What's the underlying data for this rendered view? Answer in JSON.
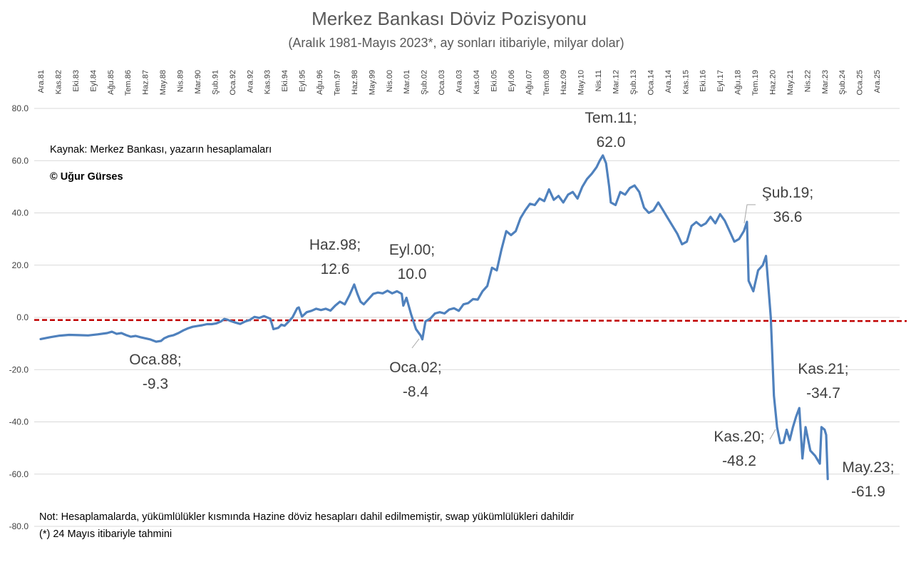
{
  "chart_data": {
    "type": "line",
    "title": "Merkez Bankası Döviz Pozisyonu",
    "subtitle": "(Aralık 1981-Mayıs 2023*, ay sonları itibariyle, milyar dolar)",
    "source": "Kaynak: Merkez Bankası, yazarın hesaplamaları",
    "copyright": "© Uğur Gürses",
    "note": "Not: Hesaplamalarda, yükümlülükler kısmında Hazine döviz hesapları dahil edilmemiştir, swap yükümlülükleri dahildir",
    "footnote": "(*) 24 Mayıs itibariyle  tahmini",
    "ylim": [
      -80,
      80
    ],
    "yticks": [
      "80.0",
      "60.0",
      "40.0",
      "20.0",
      "0.0",
      "-20.0",
      "-40.0",
      "-60.0",
      "-80.0"
    ],
    "xticks": [
      "Ara.81",
      "Kas.82",
      "Eki.83",
      "Eyl.84",
      "Ağu.85",
      "Tem.86",
      "Haz.87",
      "May.88",
      "Nis.89",
      "Mar.90",
      "Şub.91",
      "Oca.92",
      "Ara.92",
      "Kas.93",
      "Eki.94",
      "Eyl.95",
      "Ağu.96",
      "Tem.97",
      "Haz.98",
      "May.99",
      "Nis.00",
      "Mar.01",
      "Şub.02",
      "Oca.03",
      "Ara.03",
      "Kas.04",
      "Eki.05",
      "Eyl.06",
      "Ağu.07",
      "Tem.08",
      "Haz.09",
      "May.10",
      "Nis.11",
      "Mar.12",
      "Şub.13",
      "Oca.14",
      "Ara.14",
      "Kas.15",
      "Eki.16",
      "Eyl.17",
      "Ağu.18",
      "Tem.19",
      "Haz.20",
      "May.21",
      "Nis.22",
      "Mar.23",
      "Şub.24",
      "Oca.25",
      "Ara.25"
    ],
    "reference_line": {
      "y": -1,
      "color": "#c00000",
      "style": "dashed"
    },
    "series": [
      {
        "color": "#4f81bd",
        "points": [
          [
            "1981-12",
            -8.3
          ],
          [
            "1982-06",
            -7.6
          ],
          [
            "1982-12",
            -7.0
          ],
          [
            "1983-06",
            -6.7
          ],
          [
            "1983-12",
            -6.8
          ],
          [
            "1984-06",
            -6.9
          ],
          [
            "1984-12",
            -6.5
          ],
          [
            "1985-06",
            -6.0
          ],
          [
            "1985-09",
            -5.5
          ],
          [
            "1985-12",
            -6.3
          ],
          [
            "1986-03",
            -6.0
          ],
          [
            "1986-06",
            -6.8
          ],
          [
            "1986-09",
            -7.4
          ],
          [
            "1986-12",
            -7.1
          ],
          [
            "1987-03",
            -7.6
          ],
          [
            "1987-06",
            -8.0
          ],
          [
            "1987-09",
            -8.4
          ],
          [
            "1988-01",
            -9.3
          ],
          [
            "1988-04",
            -9.0
          ],
          [
            "1988-06",
            -8.0
          ],
          [
            "1988-09",
            -7.2
          ],
          [
            "1988-12",
            -6.8
          ],
          [
            "1989-03",
            -6.0
          ],
          [
            "1989-06",
            -5.0
          ],
          [
            "1989-09",
            -4.2
          ],
          [
            "1989-12",
            -3.6
          ],
          [
            "1990-03",
            -3.3
          ],
          [
            "1990-06",
            -3.0
          ],
          [
            "1990-09",
            -2.6
          ],
          [
            "1990-12",
            -2.6
          ],
          [
            "1991-03",
            -2.3
          ],
          [
            "1991-06",
            -1.5
          ],
          [
            "1991-08",
            -0.6
          ],
          [
            "1991-10",
            -0.9
          ],
          [
            "1991-12",
            -1.4
          ],
          [
            "1992-03",
            -2.0
          ],
          [
            "1992-06",
            -2.5
          ],
          [
            "1992-09",
            -1.6
          ],
          [
            "1992-12",
            -1.0
          ],
          [
            "1993-03",
            0.2
          ],
          [
            "1993-06",
            -0.2
          ],
          [
            "1993-09",
            0.5
          ],
          [
            "1993-11",
            0.0
          ],
          [
            "1994-01",
            -0.5
          ],
          [
            "1994-03",
            -4.5
          ],
          [
            "1994-06",
            -4.0
          ],
          [
            "1994-08",
            -2.8
          ],
          [
            "1994-10",
            -3.2
          ],
          [
            "1994-12",
            -2.0
          ],
          [
            "1995-03",
            0.0
          ],
          [
            "1995-06",
            3.5
          ],
          [
            "1995-07",
            3.8
          ],
          [
            "1995-09",
            0.3
          ],
          [
            "1995-12",
            2.0
          ],
          [
            "1996-03",
            2.5
          ],
          [
            "1996-06",
            3.3
          ],
          [
            "1996-09",
            2.8
          ],
          [
            "1996-12",
            3.3
          ],
          [
            "1997-03",
            2.6
          ],
          [
            "1997-06",
            4.5
          ],
          [
            "1997-09",
            6.0
          ],
          [
            "1997-12",
            5.0
          ],
          [
            "1998-03",
            8.5
          ],
          [
            "1998-06",
            12.6
          ],
          [
            "1998-08",
            9.0
          ],
          [
            "1998-10",
            6.0
          ],
          [
            "1998-12",
            5.0
          ],
          [
            "1999-03",
            7.0
          ],
          [
            "1999-06",
            9.0
          ],
          [
            "1999-09",
            9.5
          ],
          [
            "1999-12",
            9.2
          ],
          [
            "2000-03",
            10.2
          ],
          [
            "2000-06",
            9.2
          ],
          [
            "2000-09",
            10.0
          ],
          [
            "2000-12",
            9.0
          ],
          [
            "2001-01",
            4.5
          ],
          [
            "2001-03",
            7.5
          ],
          [
            "2001-06",
            1.0
          ],
          [
            "2001-09",
            -4.5
          ],
          [
            "2001-12",
            -7.0
          ],
          [
            "2002-01",
            -8.4
          ],
          [
            "2002-03",
            -1.5
          ],
          [
            "2002-06",
            -0.5
          ],
          [
            "2002-09",
            1.5
          ],
          [
            "2002-12",
            2.0
          ],
          [
            "2003-03",
            1.5
          ],
          [
            "2003-06",
            3.0
          ],
          [
            "2003-09",
            3.5
          ],
          [
            "2003-12",
            2.5
          ],
          [
            "2004-03",
            5.0
          ],
          [
            "2004-06",
            5.5
          ],
          [
            "2004-09",
            7.0
          ],
          [
            "2004-12",
            6.8
          ],
          [
            "2005-03",
            10.0
          ],
          [
            "2005-06",
            12.0
          ],
          [
            "2005-09",
            19.0
          ],
          [
            "2005-12",
            18.0
          ],
          [
            "2006-03",
            26.0
          ],
          [
            "2006-06",
            33.0
          ],
          [
            "2006-09",
            31.5
          ],
          [
            "2006-12",
            33.0
          ],
          [
            "2007-03",
            38.0
          ],
          [
            "2007-06",
            41.0
          ],
          [
            "2007-09",
            43.5
          ],
          [
            "2007-12",
            43.0
          ],
          [
            "2008-03",
            45.5
          ],
          [
            "2008-06",
            44.5
          ],
          [
            "2008-09",
            49.0
          ],
          [
            "2008-12",
            45.0
          ],
          [
            "2009-03",
            46.5
          ],
          [
            "2009-06",
            44.0
          ],
          [
            "2009-09",
            47.0
          ],
          [
            "2009-12",
            48.0
          ],
          [
            "2010-03",
            45.5
          ],
          [
            "2010-06",
            50.0
          ],
          [
            "2010-09",
            53.0
          ],
          [
            "2010-12",
            55.0
          ],
          [
            "2011-03",
            57.5
          ],
          [
            "2011-05",
            60.0
          ],
          [
            "2011-07",
            62.0
          ],
          [
            "2011-09",
            59.0
          ],
          [
            "2011-11",
            50.0
          ],
          [
            "2011-12",
            44.0
          ],
          [
            "2012-03",
            43.0
          ],
          [
            "2012-06",
            48.0
          ],
          [
            "2012-09",
            47.0
          ],
          [
            "2012-12",
            49.5
          ],
          [
            "2013-03",
            50.5
          ],
          [
            "2013-06",
            48.0
          ],
          [
            "2013-09",
            42.0
          ],
          [
            "2013-12",
            40.0
          ],
          [
            "2014-03",
            41.0
          ],
          [
            "2014-06",
            44.0
          ],
          [
            "2014-09",
            41.0
          ],
          [
            "2014-12",
            38.0
          ],
          [
            "2015-03",
            35.0
          ],
          [
            "2015-06",
            32.0
          ],
          [
            "2015-09",
            28.0
          ],
          [
            "2015-12",
            29.0
          ],
          [
            "2016-03",
            35.0
          ],
          [
            "2016-06",
            36.5
          ],
          [
            "2016-09",
            35.0
          ],
          [
            "2016-12",
            36.0
          ],
          [
            "2017-03",
            38.5
          ],
          [
            "2017-06",
            36.0
          ],
          [
            "2017-09",
            39.5
          ],
          [
            "2017-12",
            37.0
          ],
          [
            "2018-03",
            33.0
          ],
          [
            "2018-06",
            29.0
          ],
          [
            "2018-09",
            30.0
          ],
          [
            "2018-12",
            33.0
          ],
          [
            "2019-02",
            36.6
          ],
          [
            "2019-03",
            14.0
          ],
          [
            "2019-06",
            10.0
          ],
          [
            "2019-09",
            18.0
          ],
          [
            "2019-12",
            20.0
          ],
          [
            "2020-02",
            23.5
          ],
          [
            "2020-05",
            0.0
          ],
          [
            "2020-07",
            -30.0
          ],
          [
            "2020-09",
            -42.0
          ],
          [
            "2020-11",
            -48.2
          ],
          [
            "2021-01",
            -48.0
          ],
          [
            "2021-03",
            -43.0
          ],
          [
            "2021-05",
            -47.0
          ],
          [
            "2021-07",
            -42.0
          ],
          [
            "2021-09",
            -38.0
          ],
          [
            "2021-11",
            -34.7
          ],
          [
            "2022-01",
            -54.0
          ],
          [
            "2022-03",
            -42.0
          ],
          [
            "2022-06",
            -51.0
          ],
          [
            "2022-09",
            -53.0
          ],
          [
            "2022-12",
            -56.0
          ],
          [
            "2023-01",
            -42.0
          ],
          [
            "2023-03",
            -43.0
          ],
          [
            "2023-04",
            -45.0
          ],
          [
            "2023-05",
            -61.9
          ]
        ]
      }
    ],
    "annotations": [
      {
        "l1": "Oca.88;",
        "l2": "-9.3"
      },
      {
        "l1": "Haz.98;",
        "l2": "12.6"
      },
      {
        "l1": "Eyl.00;",
        "l2": "10.0"
      },
      {
        "l1": "Oca.02;",
        "l2": "-8.4"
      },
      {
        "l1": "Tem.11;",
        "l2": "62.0"
      },
      {
        "l1": "Şub.19;",
        "l2": "36.6"
      },
      {
        "l1": "Kas.20;",
        "l2": "-48.2"
      },
      {
        "l1": "Kas.21;",
        "l2": "-34.7"
      },
      {
        "l1": "May.23;",
        "l2": "-61.9"
      }
    ]
  }
}
